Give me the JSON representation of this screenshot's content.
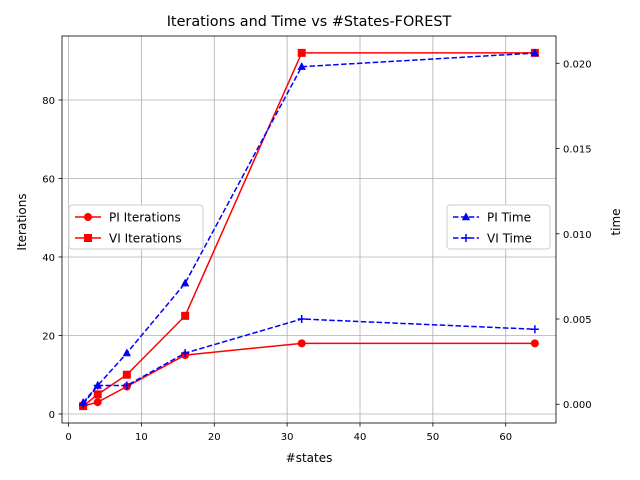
{
  "chart_data": {
    "type": "line",
    "title": "Iterations and Time vs #States-FOREST",
    "xlabel": "#states",
    "ylabel_left": "Iterations",
    "ylabel_right": "time",
    "xlim": [
      -0.9,
      66.9
    ],
    "ylim_left": [
      -2.3,
      96.3
    ],
    "ylim_right": [
      -0.0011,
      0.0216
    ],
    "x_ticks": [
      0,
      10,
      20,
      30,
      40,
      50,
      60
    ],
    "y_left_ticks": [
      0,
      20,
      40,
      60,
      80
    ],
    "y_right_ticks": [
      0.0,
      0.005,
      0.01,
      0.015,
      0.02
    ],
    "y_right_tick_labels": [
      "0.000",
      "0.005",
      "0.010",
      "0.015",
      "0.020"
    ],
    "grid": true,
    "x": [
      2,
      4,
      8,
      16,
      32,
      64
    ],
    "left_series": [
      {
        "name": "PI Iterations",
        "values": [
          2,
          3,
          7,
          15,
          18,
          18
        ],
        "color": "#ff0000",
        "marker": "circle",
        "dash": "solid"
      },
      {
        "name": "VI Iterations",
        "values": [
          2,
          5,
          10,
          25,
          92,
          92
        ],
        "color": "#ff0000",
        "marker": "square",
        "dash": "solid"
      }
    ],
    "right_series": [
      {
        "name": "PI Time",
        "values": [
          0.0001,
          0.0011,
          0.003,
          0.0071,
          0.0198,
          0.0206
        ],
        "color": "#0000ff",
        "marker": "triangle",
        "dash": "dashed"
      },
      {
        "name": "VI Time",
        "values": [
          0.0,
          0.0011,
          0.0011,
          0.003,
          0.005,
          0.0044
        ],
        "color": "#0000ff",
        "marker": "plus",
        "dash": "dashed"
      }
    ],
    "legend_left_placement": "center-left",
    "legend_right_placement": "center-right"
  }
}
